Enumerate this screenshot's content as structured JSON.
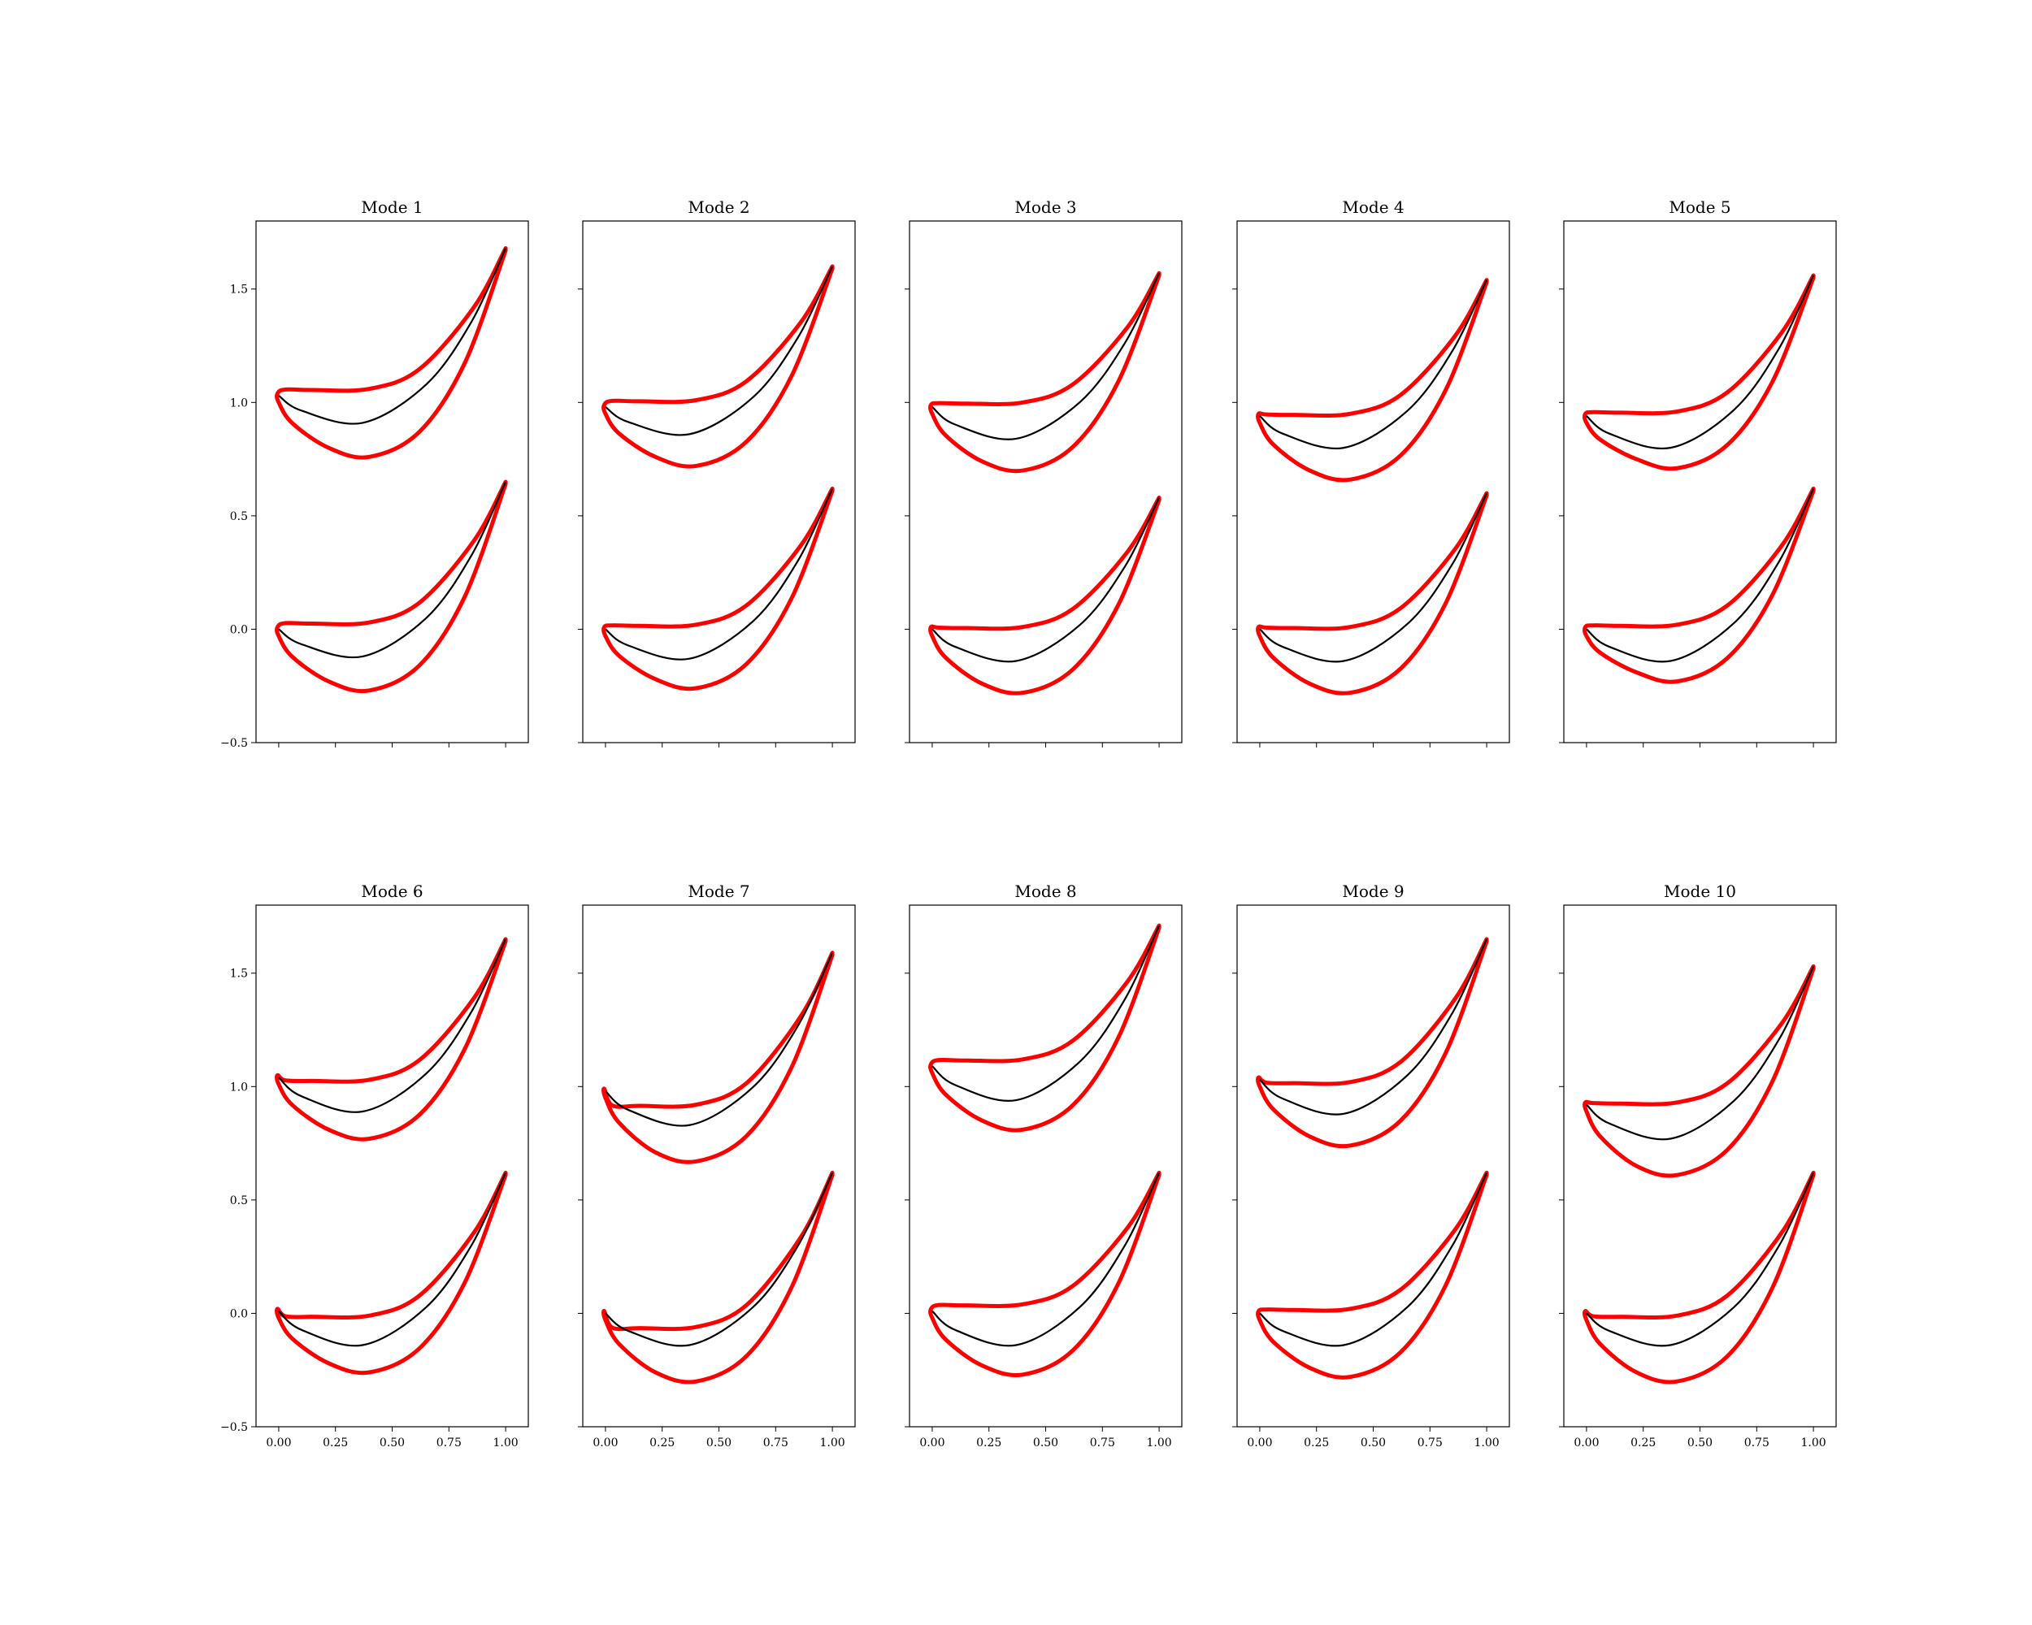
{
  "figure": {
    "colors": {
      "outline": "#ff0000",
      "camber": "#000000",
      "axes": "#000000",
      "background": "#ffffff"
    }
  },
  "axes_shared": {
    "xlim": [
      -0.1,
      1.1
    ],
    "ylim": [
      -0.5,
      1.8
    ],
    "xticks": [
      0.0,
      0.25,
      0.5,
      0.75,
      1.0
    ],
    "xtick_labels": [
      "0.00",
      "0.25",
      "0.50",
      "0.75",
      "1.00"
    ],
    "yticks": [
      -0.5,
      0.0,
      0.5,
      1.0,
      1.5
    ],
    "ytick_labels": [
      "−0.5",
      "0.0",
      "0.5",
      "1.0",
      "1.5"
    ],
    "grid": false
  },
  "chart_data": [
    {
      "type": "line",
      "title": "Mode 1",
      "xlabel": "",
      "ylabel": "",
      "series": [
        {
          "row": 0,
          "offset": 1.0,
          "le": 0.03,
          "te": 0.68,
          "camber_min": -0.09,
          "upper": 0.06,
          "lower": -0.24
        },
        {
          "row": 1,
          "offset": 0.0,
          "le": 0.0,
          "te": 0.65,
          "camber_min": -0.12,
          "upper": 0.03,
          "lower": -0.27
        }
      ]
    },
    {
      "type": "line",
      "title": "Mode 2",
      "xlabel": "",
      "ylabel": "",
      "series": [
        {
          "row": 0,
          "offset": 1.0,
          "le": -0.02,
          "te": 0.6,
          "camber_min": -0.14,
          "upper": 0.01,
          "lower": -0.28
        },
        {
          "row": 1,
          "offset": 0.0,
          "le": 0.0,
          "te": 0.62,
          "camber_min": -0.13,
          "upper": 0.02,
          "lower": -0.26
        }
      ]
    },
    {
      "type": "line",
      "title": "Mode 3",
      "xlabel": "",
      "ylabel": "",
      "series": [
        {
          "row": 0,
          "offset": 1.0,
          "le": -0.02,
          "te": 0.57,
          "camber_min": -0.16,
          "upper": 0.0,
          "lower": -0.3
        },
        {
          "row": 1,
          "offset": 0.0,
          "le": 0.0,
          "te": 0.58,
          "camber_min": -0.14,
          "upper": 0.01,
          "lower": -0.28
        }
      ]
    },
    {
      "type": "line",
      "title": "Mode 4",
      "xlabel": "",
      "ylabel": "",
      "series": [
        {
          "row": 0,
          "offset": 1.0,
          "le": -0.06,
          "te": 0.54,
          "camber_min": -0.2,
          "upper": -0.05,
          "lower": -0.34
        },
        {
          "row": 1,
          "offset": 0.0,
          "le": 0.0,
          "te": 0.6,
          "camber_min": -0.14,
          "upper": 0.01,
          "lower": -0.28
        }
      ]
    },
    {
      "type": "line",
      "title": "Mode 5",
      "xlabel": "",
      "ylabel": "",
      "series": [
        {
          "row": 0,
          "offset": 1.0,
          "le": -0.06,
          "te": 0.56,
          "camber_min": -0.2,
          "upper": -0.04,
          "lower": -0.29
        },
        {
          "row": 1,
          "offset": 0.0,
          "le": 0.0,
          "te": 0.62,
          "camber_min": -0.14,
          "upper": 0.02,
          "lower": -0.23
        }
      ]
    },
    {
      "type": "line",
      "title": "Mode 6",
      "xlabel": "",
      "ylabel": "",
      "series": [
        {
          "row": 0,
          "offset": 1.0,
          "le": 0.04,
          "te": 0.65,
          "camber_min": -0.11,
          "upper": 0.03,
          "lower": -0.23
        },
        {
          "row": 1,
          "offset": 0.0,
          "le": 0.01,
          "te": 0.62,
          "camber_min": -0.14,
          "upper": -0.01,
          "lower": -0.26
        }
      ]
    },
    {
      "type": "line",
      "title": "Mode 7",
      "xlabel": "",
      "ylabel": "",
      "series": [
        {
          "row": 0,
          "offset": 1.0,
          "le": -0.02,
          "te": 0.59,
          "camber_min": -0.17,
          "upper": -0.08,
          "lower": -0.33
        },
        {
          "row": 1,
          "offset": 0.0,
          "le": 0.0,
          "te": 0.62,
          "camber_min": -0.14,
          "upper": -0.06,
          "lower": -0.3
        }
      ]
    },
    {
      "type": "line",
      "title": "Mode 8",
      "xlabel": "",
      "ylabel": "",
      "series": [
        {
          "row": 0,
          "offset": 1.0,
          "le": 0.09,
          "te": 0.71,
          "camber_min": -0.06,
          "upper": 0.12,
          "lower": -0.19
        },
        {
          "row": 1,
          "offset": 0.0,
          "le": 0.01,
          "te": 0.62,
          "camber_min": -0.14,
          "upper": 0.04,
          "lower": -0.27
        }
      ]
    },
    {
      "type": "line",
      "title": "Mode 9",
      "xlabel": "",
      "ylabel": "",
      "series": [
        {
          "row": 0,
          "offset": 1.0,
          "le": 0.03,
          "te": 0.65,
          "camber_min": -0.12,
          "upper": 0.02,
          "lower": -0.26
        },
        {
          "row": 1,
          "offset": 0.0,
          "le": 0.0,
          "te": 0.62,
          "camber_min": -0.14,
          "upper": 0.02,
          "lower": -0.28
        }
      ]
    },
    {
      "type": "line",
      "title": "Mode 10",
      "xlabel": "",
      "ylabel": "",
      "series": [
        {
          "row": 0,
          "offset": 1.0,
          "le": -0.08,
          "te": 0.53,
          "camber_min": -0.23,
          "upper": -0.07,
          "lower": -0.39
        },
        {
          "row": 1,
          "offset": 0.0,
          "le": 0.0,
          "te": 0.62,
          "camber_min": -0.14,
          "upper": -0.01,
          "lower": -0.3
        }
      ]
    }
  ]
}
